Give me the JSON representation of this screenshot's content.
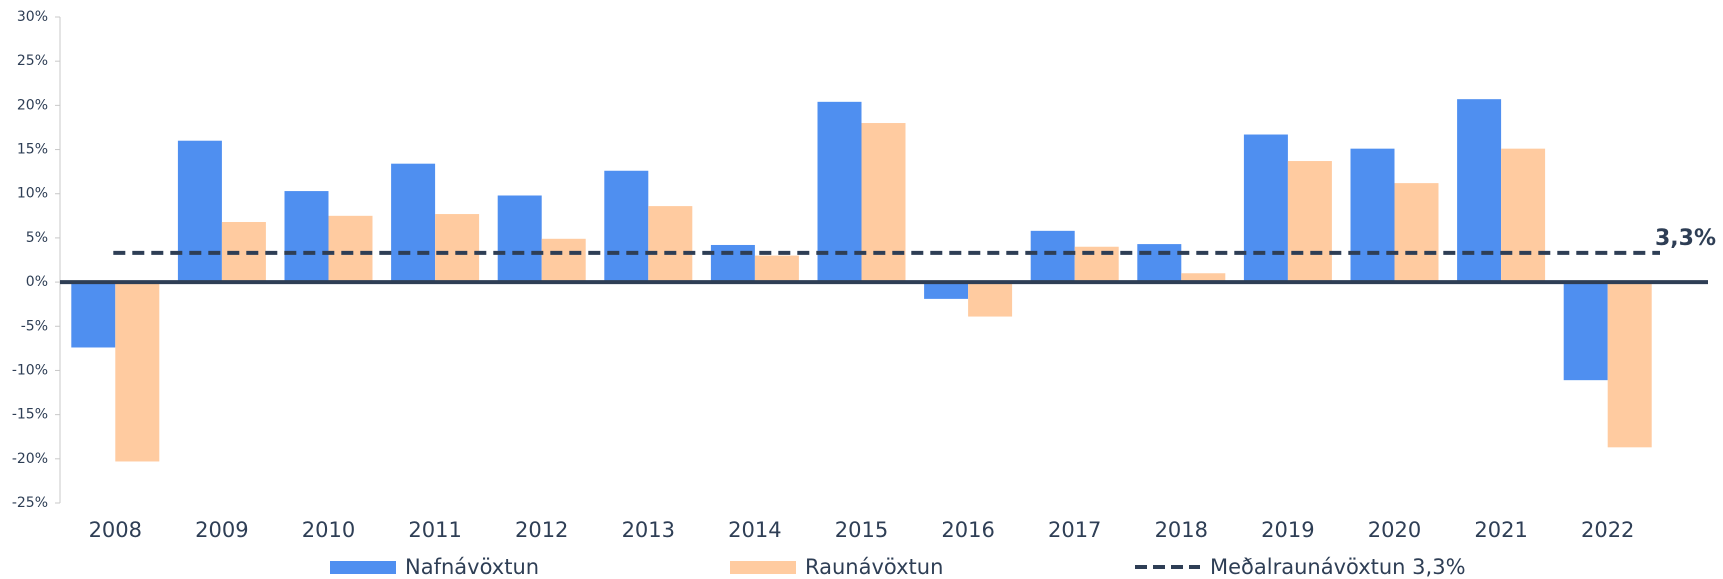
{
  "chart_data": {
    "type": "bar",
    "categories": [
      "2008",
      "2009",
      "2010",
      "2011",
      "2012",
      "2013",
      "2014",
      "2015",
      "2016",
      "2017",
      "2018",
      "2019",
      "2020",
      "2021",
      "2022"
    ],
    "series": [
      {
        "name": "Nafnávöxtun",
        "color": "#4f8ff0",
        "values": [
          -7.4,
          16.0,
          10.3,
          13.4,
          9.8,
          12.6,
          4.2,
          20.4,
          -1.9,
          5.8,
          4.3,
          16.7,
          15.1,
          20.7,
          -11.1
        ]
      },
      {
        "name": "Raunávöxtun",
        "color": "#ffcba0",
        "values": [
          -20.3,
          6.8,
          7.5,
          7.7,
          4.9,
          8.6,
          3.0,
          18.0,
          -3.9,
          4.0,
          1.0,
          13.7,
          11.2,
          15.1,
          -18.7
        ]
      }
    ],
    "average": {
      "name": "Meðalraunávöxtun 3,3%",
      "value": 3.3,
      "label": "3,3%",
      "color": "#2e3e55"
    },
    "ylim": [
      -25,
      30
    ],
    "yticks": [
      {
        "value": -25,
        "label": "-25%"
      },
      {
        "value": -20,
        "label": "-20%"
      },
      {
        "value": -15,
        "label": "-15%"
      },
      {
        "value": -10,
        "label": "-10%"
      },
      {
        "value": -5,
        "label": "-5%"
      },
      {
        "value": 0,
        "label": "0%"
      },
      {
        "value": 5,
        "label": "5%"
      },
      {
        "value": 10,
        "label": "10%"
      },
      {
        "value": 15,
        "label": "15%"
      },
      {
        "value": 20,
        "label": "20%"
      },
      {
        "value": 25,
        "label": "25%"
      },
      {
        "value": 30,
        "label": "30%"
      }
    ],
    "grid": false
  }
}
